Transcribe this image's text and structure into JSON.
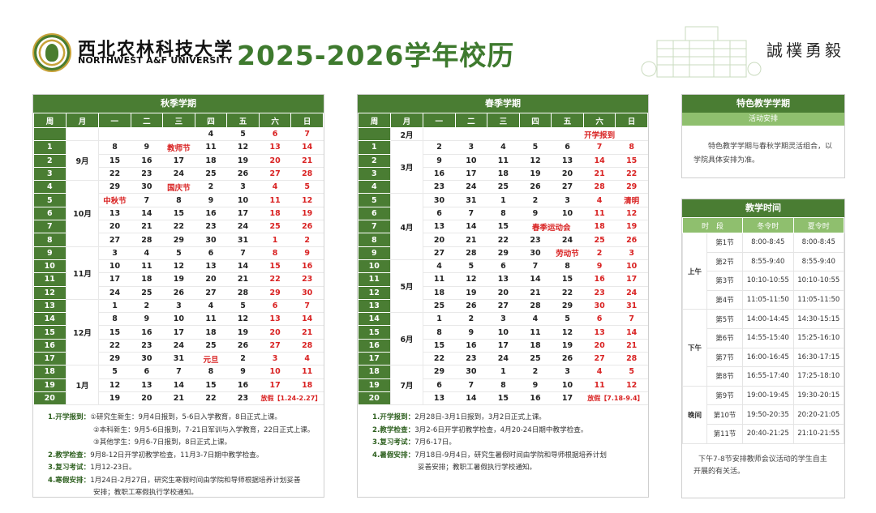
{
  "header": {
    "university_cn": "西北农林科技大学",
    "university_en": "NORTHWEST A&F UNIVERSITY",
    "title": "2025-2026学年校历",
    "motto": "誠樸勇毅"
  },
  "weekday_headers": [
    "周",
    "月",
    "一",
    "二",
    "三",
    "四",
    "五",
    "六",
    "日"
  ],
  "autumn": {
    "title": "秋季学期",
    "rows": [
      {
        "week": "",
        "month": "",
        "days": [
          "",
          "",
          "",
          "4",
          "5",
          "6",
          "7"
        ]
      },
      {
        "week": "1",
        "month": "9月",
        "days": [
          "8",
          "9",
          "教师节",
          "11",
          "12",
          "13",
          "14"
        ]
      },
      {
        "week": "2",
        "month": "",
        "days": [
          "15",
          "16",
          "17",
          "18",
          "19",
          "20",
          "21"
        ]
      },
      {
        "week": "3",
        "month": "",
        "days": [
          "22",
          "23",
          "24",
          "25",
          "26",
          "27",
          "28"
        ]
      },
      {
        "week": "4",
        "month": "10月",
        "days": [
          "29",
          "30",
          "国庆节",
          "2",
          "3",
          "4",
          "5"
        ]
      },
      {
        "week": "5",
        "month": "",
        "days": [
          "中秋节",
          "7",
          "8",
          "9",
          "10",
          "11",
          "12"
        ]
      },
      {
        "week": "6",
        "month": "",
        "days": [
          "13",
          "14",
          "15",
          "16",
          "17",
          "18",
          "19"
        ]
      },
      {
        "week": "7",
        "month": "",
        "days": [
          "20",
          "21",
          "22",
          "23",
          "24",
          "25",
          "26"
        ]
      },
      {
        "week": "8",
        "month": "",
        "days": [
          "27",
          "28",
          "29",
          "30",
          "31",
          "1",
          "2"
        ]
      },
      {
        "week": "9",
        "month": "11月",
        "days": [
          "3",
          "4",
          "5",
          "6",
          "7",
          "8",
          "9"
        ]
      },
      {
        "week": "10",
        "month": "",
        "days": [
          "10",
          "11",
          "12",
          "13",
          "14",
          "15",
          "16"
        ]
      },
      {
        "week": "11",
        "month": "",
        "days": [
          "17",
          "18",
          "19",
          "20",
          "21",
          "22",
          "23"
        ]
      },
      {
        "week": "12",
        "month": "",
        "days": [
          "24",
          "25",
          "26",
          "27",
          "28",
          "29",
          "30"
        ]
      },
      {
        "week": "13",
        "month": "12月",
        "days": [
          "1",
          "2",
          "3",
          "4",
          "5",
          "6",
          "7"
        ]
      },
      {
        "week": "14",
        "month": "",
        "days": [
          "8",
          "9",
          "10",
          "11",
          "12",
          "13",
          "14"
        ]
      },
      {
        "week": "15",
        "month": "",
        "days": [
          "15",
          "16",
          "17",
          "18",
          "19",
          "20",
          "21"
        ]
      },
      {
        "week": "16",
        "month": "",
        "days": [
          "22",
          "23",
          "24",
          "25",
          "26",
          "27",
          "28"
        ]
      },
      {
        "week": "17",
        "month": "",
        "days": [
          "29",
          "30",
          "31",
          "元旦",
          "2",
          "3",
          "4"
        ]
      },
      {
        "week": "18",
        "month": "1月",
        "days": [
          "5",
          "6",
          "7",
          "8",
          "9",
          "10",
          "11"
        ]
      },
      {
        "week": "19",
        "month": "",
        "days": [
          "12",
          "13",
          "14",
          "15",
          "16",
          "17",
          "18"
        ]
      },
      {
        "week": "20",
        "month": "",
        "days": [
          "19",
          "20",
          "21",
          "22",
          "23",
          "放假【1.24-2.27】",
          ""
        ]
      }
    ],
    "notes": [
      {
        "label": "1.开学报到：",
        "text": "①研究生新生：9月4日报到，5-6日入学教育，8日正式上课。"
      },
      {
        "label": "",
        "text": "②本科新生：9月5-6日报到，7-21日军训与入学教育，22日正式上课。"
      },
      {
        "label": "",
        "text": "③其他学生：9月6-7日报到，8日正式上课。"
      },
      {
        "label": "2.教学检查：",
        "text": "9月8-12日开学初教学检查，11月3-7日期中教学检查。"
      },
      {
        "label": "3.复习考试：",
        "text": "1月12-23日。"
      },
      {
        "label": "4.寒假安排：",
        "text": "1月24日-2月27日，研究生寒假时间由学院和导师根据培养计划妥善"
      },
      {
        "label": "",
        "text": "安排；教职工寒假执行学校通知。"
      }
    ]
  },
  "spring": {
    "title": "春季学期",
    "rows": [
      {
        "week": "",
        "month": "2月",
        "days": [
          "",
          "",
          "",
          "",
          "",
          "开学报到",
          ""
        ]
      },
      {
        "week": "1",
        "month": "3月",
        "days": [
          "2",
          "3",
          "4",
          "5",
          "6",
          "7",
          "8"
        ]
      },
      {
        "week": "2",
        "month": "",
        "days": [
          "9",
          "10",
          "11",
          "12",
          "13",
          "14",
          "15"
        ]
      },
      {
        "week": "3",
        "month": "",
        "days": [
          "16",
          "17",
          "18",
          "19",
          "20",
          "21",
          "22"
        ]
      },
      {
        "week": "4",
        "month": "",
        "days": [
          "23",
          "24",
          "25",
          "26",
          "27",
          "28",
          "29"
        ]
      },
      {
        "week": "5",
        "month": "4月",
        "days": [
          "30",
          "31",
          "1",
          "2",
          "3",
          "4",
          "清明"
        ]
      },
      {
        "week": "6",
        "month": "",
        "days": [
          "6",
          "7",
          "8",
          "9",
          "10",
          "11",
          "12"
        ]
      },
      {
        "week": "7",
        "month": "",
        "days": [
          "13",
          "14",
          "15",
          "春季运动会",
          "",
          "18",
          "19"
        ]
      },
      {
        "week": "8",
        "month": "",
        "days": [
          "20",
          "21",
          "22",
          "23",
          "24",
          "25",
          "26"
        ]
      },
      {
        "week": "9",
        "month": "",
        "days": [
          "27",
          "28",
          "29",
          "30",
          "劳动节",
          "2",
          "3"
        ]
      },
      {
        "week": "10",
        "month": "5月",
        "days": [
          "4",
          "5",
          "6",
          "7",
          "8",
          "9",
          "10"
        ]
      },
      {
        "week": "11",
        "month": "",
        "days": [
          "11",
          "12",
          "13",
          "14",
          "15",
          "16",
          "17"
        ]
      },
      {
        "week": "12",
        "month": "",
        "days": [
          "18",
          "19",
          "20",
          "21",
          "22",
          "23",
          "24"
        ]
      },
      {
        "week": "13",
        "month": "",
        "days": [
          "25",
          "26",
          "27",
          "28",
          "29",
          "30",
          "31"
        ]
      },
      {
        "week": "14",
        "month": "6月",
        "days": [
          "1",
          "2",
          "3",
          "4",
          "5",
          "6",
          "7"
        ]
      },
      {
        "week": "15",
        "month": "",
        "days": [
          "8",
          "9",
          "10",
          "11",
          "12",
          "13",
          "14"
        ]
      },
      {
        "week": "16",
        "month": "",
        "days": [
          "15",
          "16",
          "17",
          "18",
          "19",
          "20",
          "21"
        ]
      },
      {
        "week": "17",
        "month": "",
        "days": [
          "22",
          "23",
          "24",
          "25",
          "26",
          "27",
          "28"
        ]
      },
      {
        "week": "18",
        "month": "7月",
        "days": [
          "29",
          "30",
          "1",
          "2",
          "3",
          "4",
          "5"
        ]
      },
      {
        "week": "19",
        "month": "",
        "days": [
          "6",
          "7",
          "8",
          "9",
          "10",
          "11",
          "12"
        ]
      },
      {
        "week": "20",
        "month": "",
        "days": [
          "13",
          "14",
          "15",
          "16",
          "17",
          "放假【7.18-9.4】",
          ""
        ]
      }
    ],
    "notes": [
      {
        "label": "1.开学报到：",
        "text": "2月28日-3月1日报到，3月2日正式上课。"
      },
      {
        "label": "2.教学检查：",
        "text": "3月2-6日开学初教学检查，4月20-24日期中教学检查。"
      },
      {
        "label": "3.复习考试：",
        "text": "7月6-17日。"
      },
      {
        "label": "4.暑假安排：",
        "text": "7月18日-9月4日，研究生暑假时间由学院和导师根据培养计划"
      },
      {
        "label": "",
        "text": "妥善安排；教职工暑假执行学校通知。"
      }
    ]
  },
  "special": {
    "title": "特色教学学期",
    "subtitle": "活动安排",
    "text": "特色教学学期与春秋学期灵活组合，以学院具体安排为准。"
  },
  "teaching_time": {
    "title": "教学时间",
    "headers": [
      "时　段",
      "冬令时",
      "夏令时"
    ],
    "groups": [
      {
        "name": "上午",
        "periods": [
          {
            "p": "第1节",
            "winter": "8:00-8:45",
            "summer": "8:00-8:45"
          },
          {
            "p": "第2节",
            "winter": "8:55-9:40",
            "summer": "8:55-9:40"
          },
          {
            "p": "第3节",
            "winter": "10:10-10:55",
            "summer": "10:10-10:55"
          },
          {
            "p": "第4节",
            "winter": "11:05-11:50",
            "summer": "11:05-11:50"
          }
        ]
      },
      {
        "name": "下午",
        "periods": [
          {
            "p": "第5节",
            "winter": "14:00-14:45",
            "summer": "14:30-15:15"
          },
          {
            "p": "第6节",
            "winter": "14:55-15:40",
            "summer": "15:25-16:10"
          },
          {
            "p": "第7节",
            "winter": "16:00-16:45",
            "summer": "16:30-17:15"
          },
          {
            "p": "第8节",
            "winter": "16:55-17:40",
            "summer": "17:25-18:10"
          }
        ]
      },
      {
        "name": "晚间",
        "periods": [
          {
            "p": "第9节",
            "winter": "19:00-19:45",
            "summer": "19:30-20:15"
          },
          {
            "p": "第10节",
            "winter": "19:50-20:35",
            "summer": "20:20-21:05"
          },
          {
            "p": "第11节",
            "winter": "20:40-21:25",
            "summer": "21:10-21:55"
          }
        ]
      }
    ],
    "footnote": "下午7-8节安排教师会议活动的学生自主开展的有关活。"
  }
}
